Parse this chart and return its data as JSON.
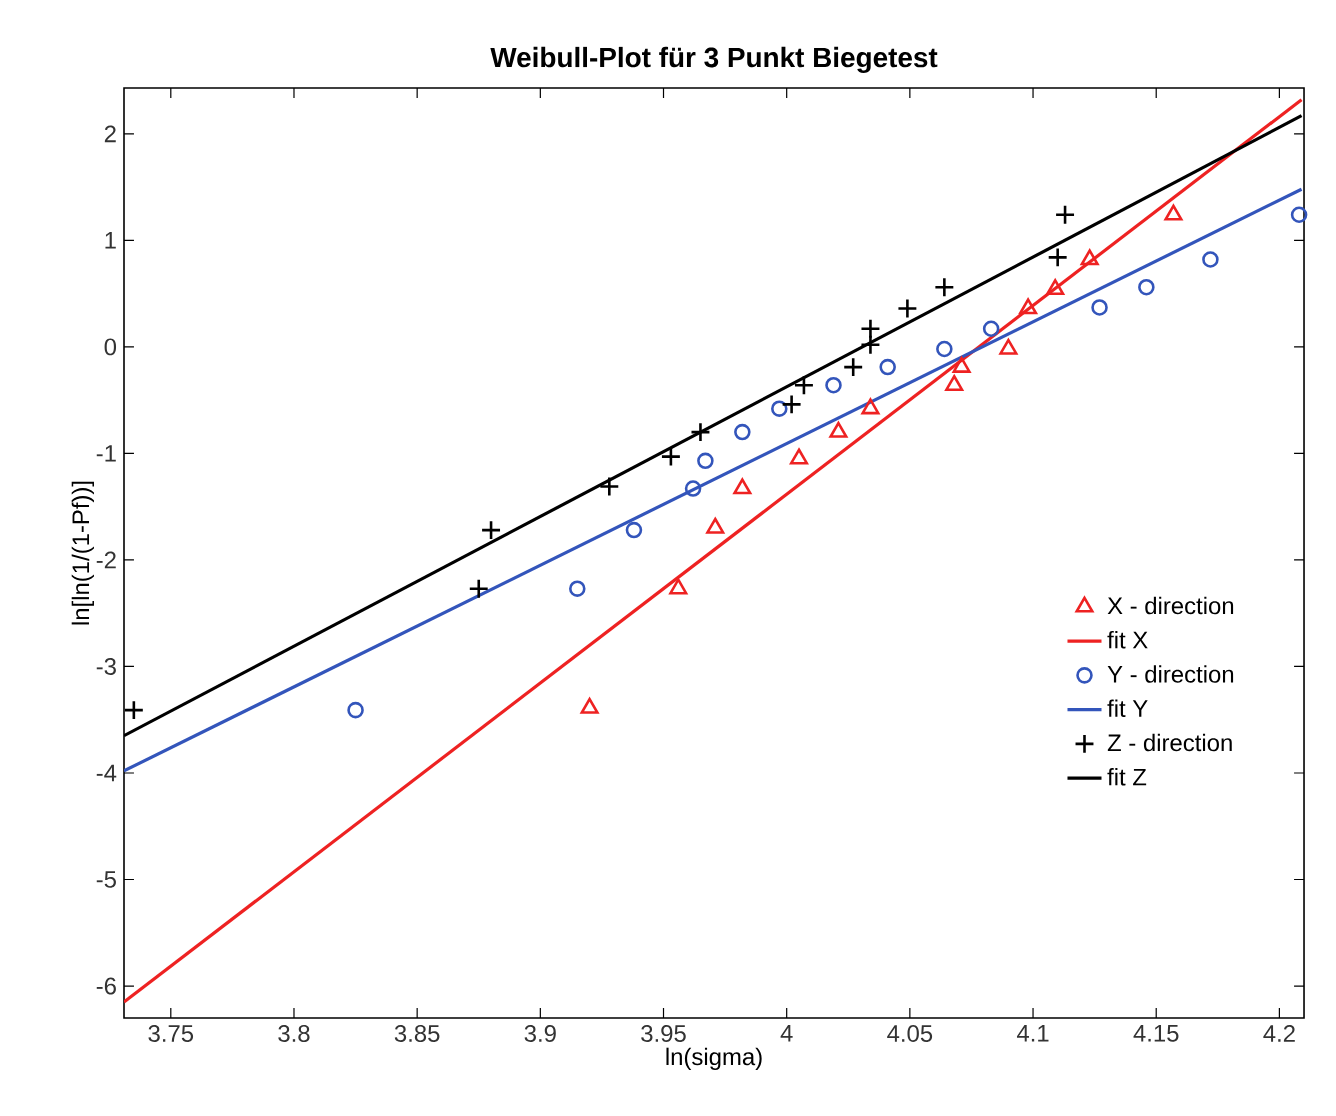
{
  "chart_data": {
    "type": "scatter",
    "title": "Weibull-Plot für 3 Punkt Biegetest",
    "xlabel": "ln(sigma)",
    "ylabel": "ln[ln(1/(1-Pf))]",
    "xlim": [
      3.731,
      4.21
    ],
    "ylim": [
      -6.3,
      2.43
    ],
    "xticks": [
      3.75,
      3.8,
      3.85,
      3.9,
      3.95,
      4,
      4.05,
      4.1,
      4.15,
      4.2
    ],
    "yticks": [
      -6,
      -5,
      -4,
      -3,
      -2,
      -1,
      0,
      1,
      2
    ],
    "grid": false,
    "legend": "right",
    "series": [
      {
        "name": "X - direction",
        "marker": "triangle",
        "color": "#ee2222",
        "x": [
          3.92,
          3.956,
          3.971,
          3.982,
          4.005,
          4.021,
          4.034,
          4.068,
          4.071,
          4.09,
          4.098,
          4.109,
          4.123,
          4.157
        ],
        "values": [
          -3.39,
          -2.27,
          -1.7,
          -1.33,
          -1.05,
          -0.8,
          -0.58,
          -0.36,
          -0.19,
          -0.02,
          0.36,
          0.54,
          0.82,
          1.24
        ]
      },
      {
        "name": "fit X",
        "type": "line",
        "marker": "none",
        "color": "#ee2222",
        "x": [
          3.731,
          4.209
        ],
        "values": [
          -6.15,
          2.32
        ]
      },
      {
        "name": "Y - direction",
        "marker": "circle",
        "color": "#3355bb",
        "x": [
          3.825,
          3.915,
          3.938,
          3.962,
          3.967,
          3.982,
          3.997,
          4.019,
          4.041,
          4.064,
          4.083,
          4.127,
          4.146,
          4.172,
          4.208
        ],
        "values": [
          -3.41,
          -2.27,
          -1.72,
          -1.33,
          -1.07,
          -0.8,
          -0.58,
          -0.36,
          -0.19,
          -0.02,
          0.17,
          0.37,
          0.56,
          0.82,
          1.24
        ]
      },
      {
        "name": "fit Y",
        "type": "line",
        "marker": "none",
        "color": "#3355bb",
        "x": [
          3.731,
          4.209
        ],
        "values": [
          -3.98,
          1.48
        ]
      },
      {
        "name": "Z - direction",
        "marker": "cross",
        "color": "#000000",
        "x": [
          3.735,
          3.875,
          3.88,
          3.928,
          3.953,
          3.965,
          4.002,
          4.007,
          4.027,
          4.034,
          4.034,
          4.049,
          4.064,
          4.11,
          4.113
        ],
        "values": [
          -3.41,
          -2.27,
          -1.72,
          -1.31,
          -1.03,
          -0.8,
          -0.54,
          -0.36,
          -0.19,
          0.02,
          0.17,
          0.36,
          0.56,
          0.84,
          1.24
        ]
      },
      {
        "name": "fit Z",
        "type": "line",
        "marker": "none",
        "color": "#000000",
        "x": [
          3.731,
          4.209
        ],
        "values": [
          -3.65,
          2.17
        ]
      }
    ]
  }
}
